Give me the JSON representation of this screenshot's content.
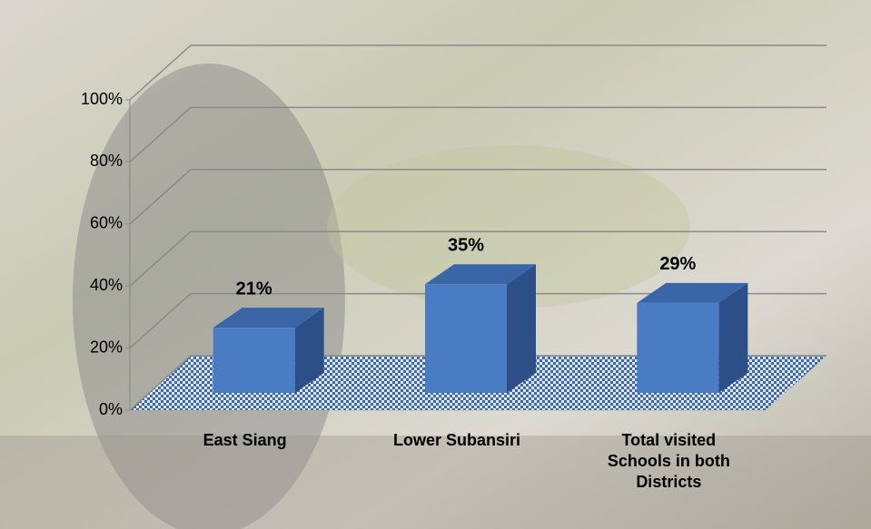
{
  "chart_data": {
    "type": "bar3d",
    "categories": [
      "East Siang",
      "Lower Subansiri",
      "Total visited Schools in both Districts"
    ],
    "values": [
      21,
      35,
      29
    ],
    "value_labels": [
      "21%",
      "35%",
      "29%"
    ],
    "color": "#4a7cc4",
    "ylim": [
      0,
      100
    ],
    "yticks": [
      {
        "value": 0,
        "label": "0%"
      },
      {
        "value": 20,
        "label": "20%"
      },
      {
        "value": 40,
        "label": "40%"
      },
      {
        "value": 60,
        "label": "60%"
      },
      {
        "value": 80,
        "label": "80%"
      },
      {
        "value": 100,
        "label": "100%"
      }
    ],
    "grid": true
  }
}
